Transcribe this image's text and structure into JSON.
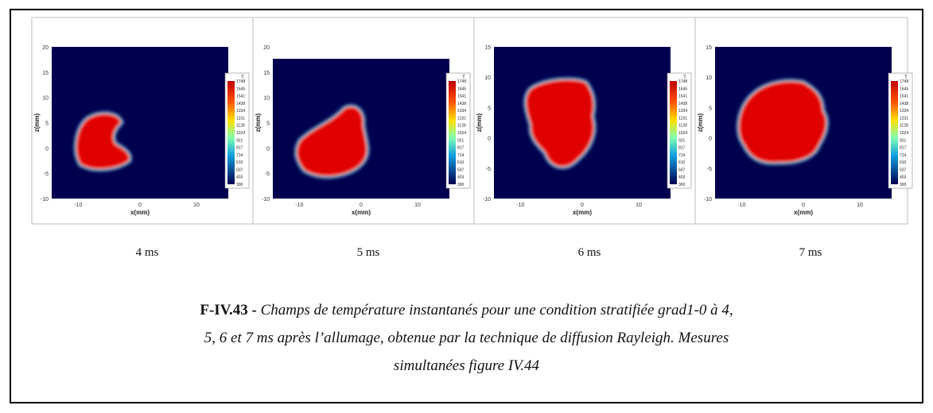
{
  "panels": [
    {
      "time": "4 ms",
      "y_label": "z(mm)",
      "x_label": "x(mm)",
      "yticks": [
        20,
        15,
        10,
        5,
        0,
        -5,
        -10
      ],
      "xticks": [
        -10,
        0,
        10
      ],
      "colorbar": {
        "title": "T",
        "labels": [
          1748,
          1645,
          1541,
          1438,
          1334,
          1231,
          1128,
          1024,
          921,
          817,
          714,
          610,
          507,
          403,
          300
        ]
      }
    },
    {
      "time": "5 ms",
      "y_label": "z(mm)",
      "x_label": "x(mm)",
      "yticks": [
        20,
        15,
        10,
        5,
        0,
        -5,
        -10
      ],
      "xticks": [
        -10,
        0,
        10
      ],
      "colorbar": {
        "title": "T",
        "labels": [
          1748,
          1645,
          1541,
          1438,
          1334,
          1231,
          1128,
          1024,
          921,
          817,
          714,
          610,
          507,
          403,
          300
        ]
      }
    },
    {
      "time": "6 ms",
      "y_label": "z(mm)",
      "x_label": "x(mm)",
      "yticks": [
        15,
        10,
        5,
        0,
        -5,
        -10
      ],
      "xticks": [
        -10,
        0,
        10
      ],
      "colorbar": {
        "title": "T",
        "labels": [
          1748,
          1645,
          1541,
          1438,
          1334,
          1231,
          1128,
          1024,
          921,
          817,
          714,
          610,
          507,
          403,
          300
        ]
      }
    },
    {
      "time": "7 ms",
      "y_label": "z(mm)",
      "x_label": "x(mm)",
      "yticks": [
        15,
        10,
        5,
        0,
        -5,
        -10
      ],
      "xticks": [
        -10,
        0,
        10
      ],
      "colorbar": {
        "title": "T",
        "labels": [
          1748,
          1645,
          1541,
          1438,
          1334,
          1231,
          1128,
          1024,
          921,
          817,
          714,
          610,
          507,
          403,
          300
        ]
      }
    }
  ],
  "caption": {
    "label": "F-IV.43 -",
    "lines": [
      "Champs de température instantanés pour une condition stratifiée grad1-0 à 4,",
      "5, 6 et 7 ms après l’allumage, obtenue par la technique de diffusion Rayleigh. Mesures",
      "simultanées figure IV.44"
    ]
  }
}
